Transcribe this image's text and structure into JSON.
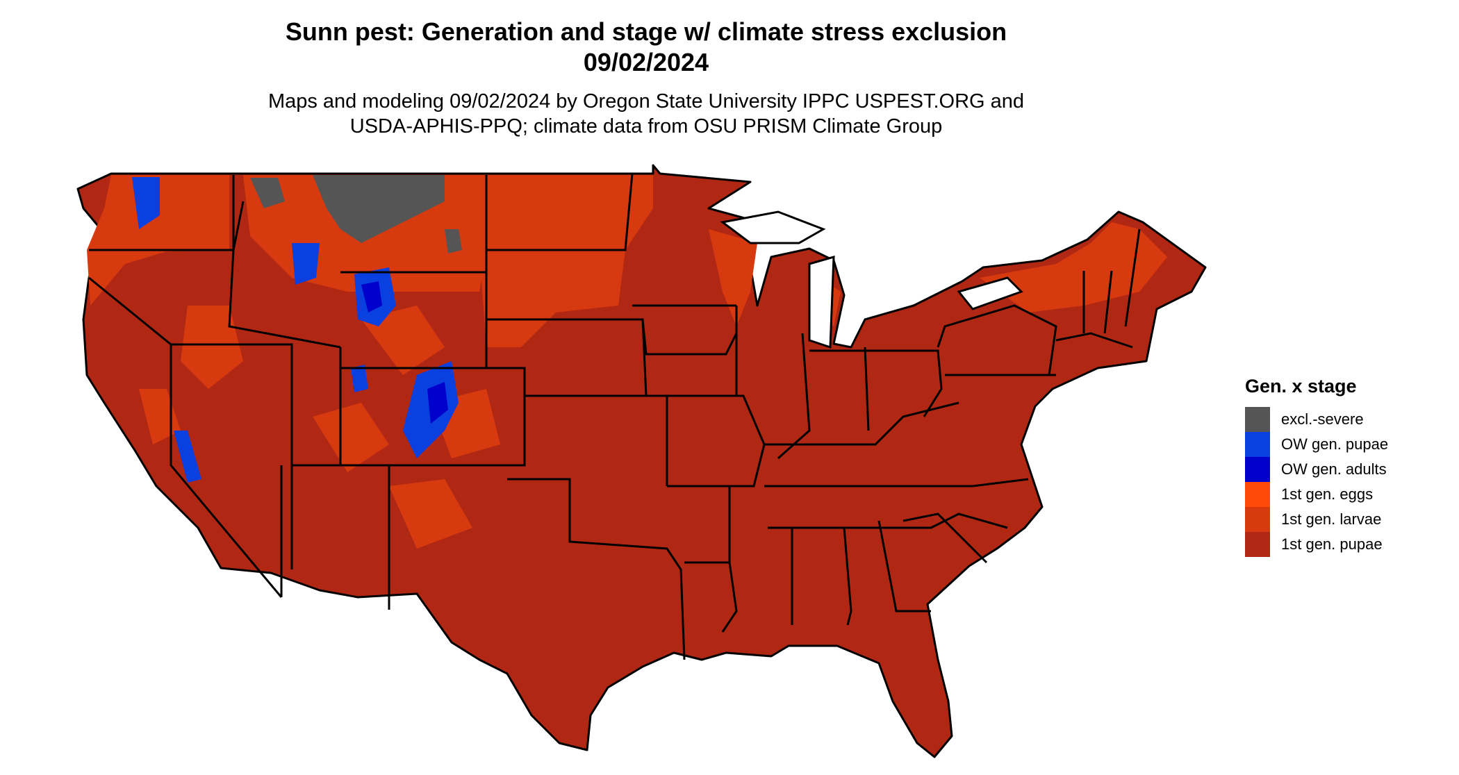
{
  "header": {
    "title_line1": "Sunn pest: Generation and stage w/ climate stress exclusion",
    "title_line2": "09/02/2024",
    "subtitle_line1": "Maps and modeling 09/02/2024 by Oregon State University IPPC USPEST.ORG and",
    "subtitle_line2": "USDA-APHIS-PPQ; climate data from OSU PRISM Climate Group"
  },
  "legend": {
    "title": "Gen. x stage",
    "items": [
      {
        "label": "excl.-severe",
        "color": "#555555"
      },
      {
        "label": "OW gen. pupae",
        "color": "#0a3fe0"
      },
      {
        "label": "OW gen. adults",
        "color": "#0000cc"
      },
      {
        "label": "1st gen. eggs",
        "color": "#ff4a0a"
      },
      {
        "label": "1st gen. larvae",
        "color": "#d83a10"
      },
      {
        "label": "1st gen. pupae",
        "color": "#b02814"
      }
    ]
  },
  "map": {
    "region": "contiguous United States",
    "dominant_class": "1st gen. pupae",
    "border_color": "#000000"
  }
}
